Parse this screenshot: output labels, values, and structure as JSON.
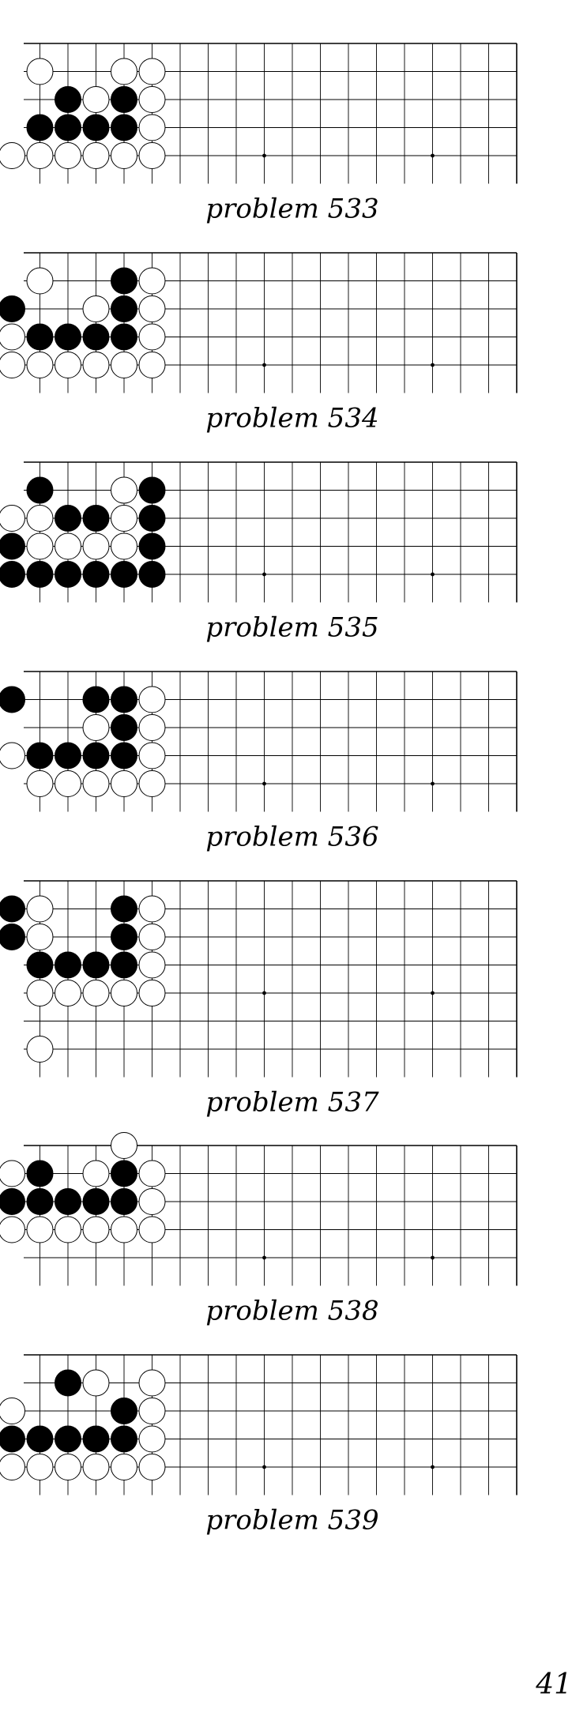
{
  "board": {
    "columns": 19,
    "rows_visible": 5,
    "hoshi_columns": [
      10,
      16
    ],
    "hoshi_row": 4
  },
  "problems": [
    {
      "caption": "problem 533",
      "stones": [
        {
          "c": "w",
          "x": 2,
          "y": 1
        },
        {
          "c": "w",
          "x": 5,
          "y": 1
        },
        {
          "c": "w",
          "x": 6,
          "y": 1
        },
        {
          "c": "b",
          "x": 3,
          "y": 2
        },
        {
          "c": "w",
          "x": 4,
          "y": 2
        },
        {
          "c": "b",
          "x": 5,
          "y": 2
        },
        {
          "c": "w",
          "x": 6,
          "y": 2
        },
        {
          "c": "b",
          "x": 2,
          "y": 3
        },
        {
          "c": "b",
          "x": 3,
          "y": 3
        },
        {
          "c": "b",
          "x": 4,
          "y": 3
        },
        {
          "c": "b",
          "x": 5,
          "y": 3
        },
        {
          "c": "w",
          "x": 6,
          "y": 3
        },
        {
          "c": "w",
          "x": 1,
          "y": 4
        },
        {
          "c": "w",
          "x": 2,
          "y": 4
        },
        {
          "c": "w",
          "x": 3,
          "y": 4
        },
        {
          "c": "w",
          "x": 4,
          "y": 4
        },
        {
          "c": "w",
          "x": 5,
          "y": 4
        },
        {
          "c": "w",
          "x": 6,
          "y": 4
        }
      ]
    },
    {
      "caption": "problem 534",
      "stones": [
        {
          "c": "w",
          "x": 2,
          "y": 1
        },
        {
          "c": "b",
          "x": 5,
          "y": 1
        },
        {
          "c": "w",
          "x": 6,
          "y": 1
        },
        {
          "c": "b",
          "x": 1,
          "y": 2
        },
        {
          "c": "w",
          "x": 4,
          "y": 2
        },
        {
          "c": "b",
          "x": 5,
          "y": 2
        },
        {
          "c": "w",
          "x": 6,
          "y": 2
        },
        {
          "c": "w",
          "x": 1,
          "y": 3
        },
        {
          "c": "b",
          "x": 2,
          "y": 3
        },
        {
          "c": "b",
          "x": 3,
          "y": 3
        },
        {
          "c": "b",
          "x": 4,
          "y": 3
        },
        {
          "c": "b",
          "x": 5,
          "y": 3
        },
        {
          "c": "w",
          "x": 6,
          "y": 3
        },
        {
          "c": "w",
          "x": 1,
          "y": 4
        },
        {
          "c": "w",
          "x": 2,
          "y": 4
        },
        {
          "c": "w",
          "x": 3,
          "y": 4
        },
        {
          "c": "w",
          "x": 4,
          "y": 4
        },
        {
          "c": "w",
          "x": 5,
          "y": 4
        },
        {
          "c": "w",
          "x": 6,
          "y": 4
        }
      ]
    },
    {
      "caption": "problem 535",
      "stones": [
        {
          "c": "b",
          "x": 2,
          "y": 1
        },
        {
          "c": "w",
          "x": 5,
          "y": 1
        },
        {
          "c": "b",
          "x": 6,
          "y": 1
        },
        {
          "c": "w",
          "x": 1,
          "y": 2
        },
        {
          "c": "w",
          "x": 2,
          "y": 2
        },
        {
          "c": "b",
          "x": 3,
          "y": 2
        },
        {
          "c": "b",
          "x": 4,
          "y": 2
        },
        {
          "c": "w",
          "x": 5,
          "y": 2
        },
        {
          "c": "b",
          "x": 6,
          "y": 2
        },
        {
          "c": "b",
          "x": 1,
          "y": 3
        },
        {
          "c": "w",
          "x": 2,
          "y": 3
        },
        {
          "c": "w",
          "x": 3,
          "y": 3
        },
        {
          "c": "w",
          "x": 4,
          "y": 3
        },
        {
          "c": "w",
          "x": 5,
          "y": 3
        },
        {
          "c": "b",
          "x": 6,
          "y": 3
        },
        {
          "c": "b",
          "x": 1,
          "y": 4
        },
        {
          "c": "b",
          "x": 2,
          "y": 4
        },
        {
          "c": "b",
          "x": 3,
          "y": 4
        },
        {
          "c": "b",
          "x": 4,
          "y": 4
        },
        {
          "c": "b",
          "x": 5,
          "y": 4
        },
        {
          "c": "b",
          "x": 6,
          "y": 4
        }
      ]
    },
    {
      "caption": "problem 536",
      "stones": [
        {
          "c": "b",
          "x": 1,
          "y": 1
        },
        {
          "c": "b",
          "x": 4,
          "y": 1
        },
        {
          "c": "b",
          "x": 5,
          "y": 1
        },
        {
          "c": "w",
          "x": 6,
          "y": 1
        },
        {
          "c": "w",
          "x": 4,
          "y": 2
        },
        {
          "c": "b",
          "x": 5,
          "y": 2
        },
        {
          "c": "w",
          "x": 6,
          "y": 2
        },
        {
          "c": "w",
          "x": 1,
          "y": 3
        },
        {
          "c": "b",
          "x": 2,
          "y": 3
        },
        {
          "c": "b",
          "x": 3,
          "y": 3
        },
        {
          "c": "b",
          "x": 4,
          "y": 3
        },
        {
          "c": "b",
          "x": 5,
          "y": 3
        },
        {
          "c": "w",
          "x": 6,
          "y": 3
        },
        {
          "c": "w",
          "x": 2,
          "y": 4
        },
        {
          "c": "w",
          "x": 3,
          "y": 4
        },
        {
          "c": "w",
          "x": 4,
          "y": 4
        },
        {
          "c": "w",
          "x": 5,
          "y": 4
        },
        {
          "c": "w",
          "x": 6,
          "y": 4
        }
      ]
    },
    {
      "caption": "problem 537",
      "rows_visible": 7,
      "stones": [
        {
          "c": "b",
          "x": 1,
          "y": 1
        },
        {
          "c": "w",
          "x": 2,
          "y": 1
        },
        {
          "c": "b",
          "x": 5,
          "y": 1
        },
        {
          "c": "w",
          "x": 6,
          "y": 1
        },
        {
          "c": "b",
          "x": 1,
          "y": 2
        },
        {
          "c": "w",
          "x": 2,
          "y": 2
        },
        {
          "c": "b",
          "x": 5,
          "y": 2
        },
        {
          "c": "w",
          "x": 6,
          "y": 2
        },
        {
          "c": "b",
          "x": 2,
          "y": 3
        },
        {
          "c": "b",
          "x": 3,
          "y": 3
        },
        {
          "c": "b",
          "x": 4,
          "y": 3
        },
        {
          "c": "b",
          "x": 5,
          "y": 3
        },
        {
          "c": "w",
          "x": 6,
          "y": 3
        },
        {
          "c": "w",
          "x": 2,
          "y": 4
        },
        {
          "c": "w",
          "x": 3,
          "y": 4
        },
        {
          "c": "w",
          "x": 4,
          "y": 4
        },
        {
          "c": "w",
          "x": 5,
          "y": 4
        },
        {
          "c": "w",
          "x": 6,
          "y": 4
        },
        {
          "c": "w",
          "x": 2,
          "y": 6
        }
      ]
    },
    {
      "caption": "problem 538",
      "stones": [
        {
          "c": "w",
          "x": 5,
          "y": 0
        },
        {
          "c": "w",
          "x": 1,
          "y": 1
        },
        {
          "c": "b",
          "x": 2,
          "y": 1
        },
        {
          "c": "w",
          "x": 4,
          "y": 1
        },
        {
          "c": "b",
          "x": 5,
          "y": 1
        },
        {
          "c": "w",
          "x": 6,
          "y": 1
        },
        {
          "c": "b",
          "x": 1,
          "y": 2
        },
        {
          "c": "b",
          "x": 2,
          "y": 2
        },
        {
          "c": "b",
          "x": 3,
          "y": 2
        },
        {
          "c": "b",
          "x": 4,
          "y": 2
        },
        {
          "c": "b",
          "x": 5,
          "y": 2
        },
        {
          "c": "w",
          "x": 6,
          "y": 2
        },
        {
          "c": "w",
          "x": 1,
          "y": 3
        },
        {
          "c": "w",
          "x": 2,
          "y": 3
        },
        {
          "c": "w",
          "x": 3,
          "y": 3
        },
        {
          "c": "w",
          "x": 4,
          "y": 3
        },
        {
          "c": "w",
          "x": 5,
          "y": 3
        },
        {
          "c": "w",
          "x": 6,
          "y": 3
        }
      ]
    },
    {
      "caption": "problem 539",
      "stones": [
        {
          "c": "b",
          "x": 3,
          "y": 1
        },
        {
          "c": "w",
          "x": 4,
          "y": 1
        },
        {
          "c": "w",
          "x": 6,
          "y": 1
        },
        {
          "c": "w",
          "x": 1,
          "y": 2
        },
        {
          "c": "b",
          "x": 5,
          "y": 2
        },
        {
          "c": "w",
          "x": 6,
          "y": 2
        },
        {
          "c": "b",
          "x": 1,
          "y": 3
        },
        {
          "c": "b",
          "x": 2,
          "y": 3
        },
        {
          "c": "b",
          "x": 3,
          "y": 3
        },
        {
          "c": "b",
          "x": 4,
          "y": 3
        },
        {
          "c": "b",
          "x": 5,
          "y": 3
        },
        {
          "c": "w",
          "x": 6,
          "y": 3
        },
        {
          "c": "w",
          "x": 1,
          "y": 4
        },
        {
          "c": "w",
          "x": 2,
          "y": 4
        },
        {
          "c": "w",
          "x": 3,
          "y": 4
        },
        {
          "c": "w",
          "x": 4,
          "y": 4
        },
        {
          "c": "w",
          "x": 5,
          "y": 4
        },
        {
          "c": "w",
          "x": 6,
          "y": 4
        }
      ]
    }
  ],
  "page_number": "41"
}
